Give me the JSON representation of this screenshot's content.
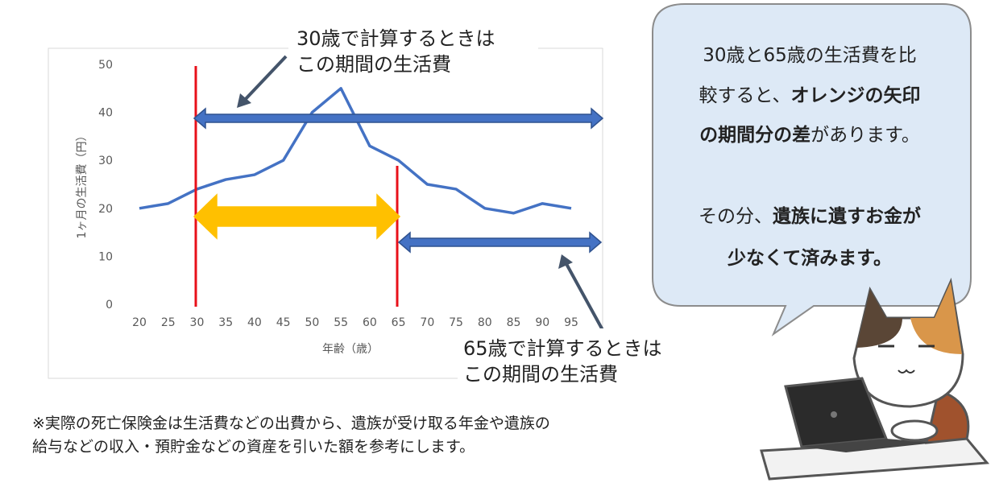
{
  "chart_data": {
    "type": "line",
    "categories": [
      "20",
      "25",
      "30",
      "35",
      "40",
      "45",
      "50",
      "55",
      "60",
      "65",
      "70",
      "75",
      "80",
      "85",
      "90",
      "95"
    ],
    "values": [
      20,
      21,
      24,
      26,
      27,
      30,
      40,
      45,
      33,
      30,
      25,
      24,
      20,
      19,
      21,
      20
    ],
    "color": "#4472c4",
    "ylim": [
      0,
      50
    ],
    "yticks": [
      0,
      10,
      20,
      30,
      40,
      50
    ],
    "x_label": "年齢（歳）",
    "y_label": "1ヶ月の生活費（円）"
  },
  "annotations": {
    "label_30": [
      "30歳で計算するときは",
      "この期間の生活費"
    ],
    "label_65": [
      "65歳で計算するときは",
      "この期間の生活費"
    ]
  },
  "bubble": {
    "lines": [
      [
        {
          "text": "30歳と65歳の生活費を比",
          "bold": false
        }
      ],
      [
        {
          "text": "較すると、",
          "bold": false
        },
        {
          "text": "オレンジの矢印",
          "bold": true
        }
      ],
      [
        {
          "text": "の期間分の差",
          "bold": true
        },
        {
          "text": "があります。",
          "bold": false
        }
      ],
      [
        {
          "text": "その分、",
          "bold": false
        },
        {
          "text": "遺族に遺すお金が",
          "bold": true
        }
      ],
      [
        {
          "text": "少なくて済みます。",
          "bold": true
        }
      ]
    ]
  },
  "footnote": [
    "※実際の死亡保険金は生活費などの出費から、遺族が受け取る年金や遺族の",
    "給与などの収入・預貯金などの資産を引いた額を参考にします。"
  ]
}
